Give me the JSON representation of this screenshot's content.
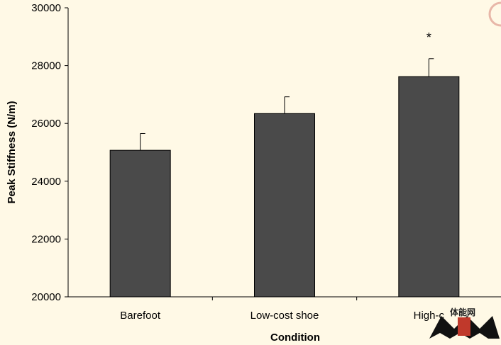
{
  "chart_data": {
    "type": "bar",
    "categories": [
      "Barefoot",
      "Low-cost shoe",
      "High-cost shoe"
    ],
    "category_labels_shown": [
      "Barefoot",
      "Low-cost shoe",
      "High-c"
    ],
    "values": [
      25070,
      26340,
      27620
    ],
    "error_upper": [
      580,
      580,
      620
    ],
    "significance": [
      "",
      "",
      "*"
    ],
    "xlabel": "Condition",
    "ylabel": "Peak Stiffness (N/m)",
    "ylim": [
      20000,
      30000
    ],
    "yticks": [
      20000,
      22000,
      24000,
      26000,
      28000,
      30000
    ],
    "grid": false,
    "legend": "none",
    "bar_color": "#4a4a4a",
    "background_color": "#fff9e6"
  },
  "watermark": {
    "text": "体能网",
    "accent_color": "#c0392b"
  }
}
